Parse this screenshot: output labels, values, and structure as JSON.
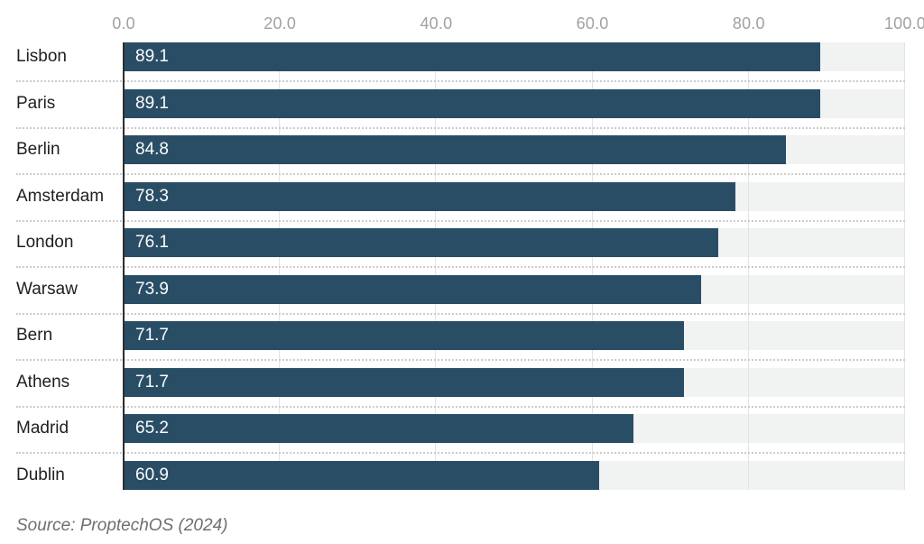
{
  "chart_data": {
    "type": "bar",
    "orientation": "horizontal",
    "categories": [
      "Lisbon",
      "Paris",
      "Berlin",
      "Amsterdam",
      "London",
      "Warsaw",
      "Bern",
      "Athens",
      "Madrid",
      "Dublin"
    ],
    "values": [
      89.1,
      89.1,
      84.8,
      78.3,
      76.1,
      73.9,
      71.7,
      71.7,
      65.2,
      60.9
    ],
    "value_labels": [
      "89.1",
      "89.1",
      "84.8",
      "78.3",
      "76.1",
      "73.9",
      "71.7",
      "71.7",
      "65.2",
      "60.9"
    ],
    "x_ticks": [
      "0.0",
      "20.0",
      "40.0",
      "60.0",
      "80.0",
      "100.0"
    ],
    "xlim": [
      0,
      100
    ],
    "grid": "vertical",
    "legend": "none",
    "bar_color": "#2a4d66",
    "track_color": "#f1f2f2",
    "tick_color": "#a1a1a1",
    "source_note": "Source: ProptechOS (2024)"
  }
}
